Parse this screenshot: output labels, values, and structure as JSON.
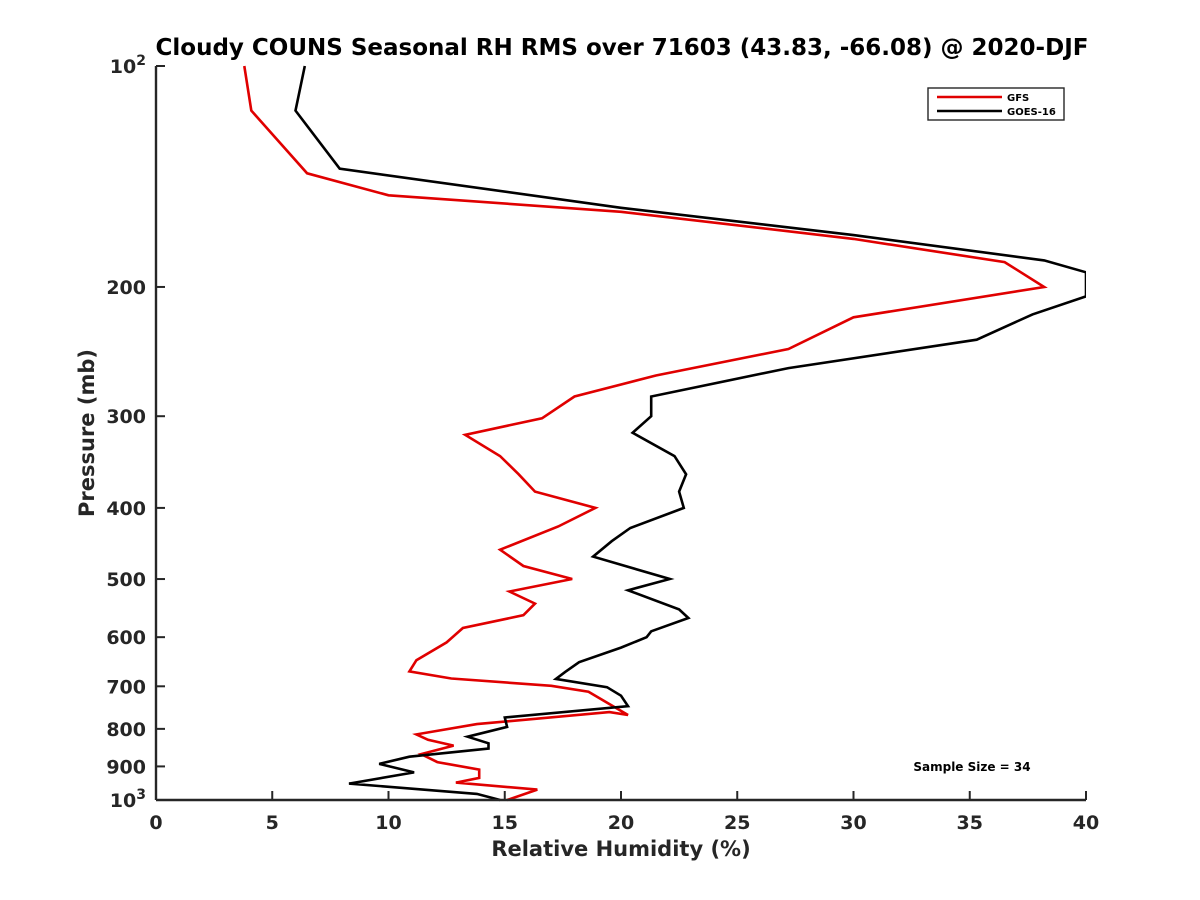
{
  "chart_data": {
    "type": "line",
    "title": "Cloudy COUNS Seasonal RH RMS over 71603 (43.83, -66.08) @ 2020-DJF",
    "xlabel": "Relative Humidity (%)",
    "ylabel": "Pressure (mb)",
    "xlim": [
      0,
      40
    ],
    "ylim": [
      100,
      1000
    ],
    "yscale": "log",
    "ydirection": "reverse",
    "xticks": [
      "0",
      "5",
      "10",
      "15",
      "20",
      "25",
      "30",
      "35",
      "40"
    ],
    "xtick_values": [
      0,
      5,
      10,
      15,
      20,
      25,
      30,
      35,
      40
    ],
    "yticks": [
      {
        "value": 100,
        "base": "10",
        "exp": "2"
      },
      {
        "value": 200,
        "label": "200"
      },
      {
        "value": 300,
        "label": "300"
      },
      {
        "value": 400,
        "label": "400"
      },
      {
        "value": 500,
        "label": "500"
      },
      {
        "value": 600,
        "label": "600"
      },
      {
        "value": 700,
        "label": "700"
      },
      {
        "value": 800,
        "label": "800"
      },
      {
        "value": 900,
        "label": "900"
      },
      {
        "value": 1000,
        "base": "10",
        "exp": "3"
      }
    ],
    "legend_position": "top-right",
    "annotation": "Sample Size = 34",
    "series": [
      {
        "name": "GFS",
        "color": "#e00000",
        "points": [
          [
            3.8,
            100
          ],
          [
            4.1,
            115
          ],
          [
            6.5,
            140
          ],
          [
            10.0,
            150
          ],
          [
            20.0,
            158
          ],
          [
            30.0,
            172
          ],
          [
            36.5,
            185
          ],
          [
            38.2,
            200
          ],
          [
            30.0,
            220
          ],
          [
            27.2,
            243
          ],
          [
            21.5,
            264
          ],
          [
            18.0,
            282
          ],
          [
            16.6,
            302
          ],
          [
            13.3,
            318
          ],
          [
            14.8,
            340
          ],
          [
            15.6,
            360
          ],
          [
            16.3,
            380
          ],
          [
            18.9,
            400
          ],
          [
            17.3,
            424
          ],
          [
            14.8,
            456
          ],
          [
            15.8,
            480
          ],
          [
            17.9,
            500
          ],
          [
            15.2,
            520
          ],
          [
            16.3,
            540
          ],
          [
            15.8,
            560
          ],
          [
            13.2,
            583
          ],
          [
            12.5,
            610
          ],
          [
            11.2,
            645
          ],
          [
            10.9,
            668
          ],
          [
            12.7,
            683
          ],
          [
            17.0,
            699
          ],
          [
            18.6,
            712
          ],
          [
            20.3,
            766
          ],
          [
            19.5,
            759
          ],
          [
            13.8,
            788
          ],
          [
            11.2,
            814
          ],
          [
            11.7,
            828
          ],
          [
            12.8,
            843
          ],
          [
            11.4,
            866
          ],
          [
            12.1,
            888
          ],
          [
            13.9,
            909
          ],
          [
            13.9,
            933
          ],
          [
            12.9,
            947
          ],
          [
            16.4,
            968
          ],
          [
            15.1,
            1000
          ]
        ]
      },
      {
        "name": "GOES-16",
        "color": "#000000",
        "points": [
          [
            6.4,
            100
          ],
          [
            6.0,
            115
          ],
          [
            7.9,
            138
          ],
          [
            20.0,
            156
          ],
          [
            30.0,
            170
          ],
          [
            38.2,
            184
          ],
          [
            40.0,
            191
          ],
          [
            40.0,
            206
          ],
          [
            37.7,
            218
          ],
          [
            35.3,
            236
          ],
          [
            27.2,
            258
          ],
          [
            21.3,
            282
          ],
          [
            21.3,
            300
          ],
          [
            20.5,
            316
          ],
          [
            22.3,
            340
          ],
          [
            22.8,
            360
          ],
          [
            22.5,
            380
          ],
          [
            22.7,
            400
          ],
          [
            20.4,
            426
          ],
          [
            19.6,
            444
          ],
          [
            18.8,
            466
          ],
          [
            22.1,
            500
          ],
          [
            20.3,
            518
          ],
          [
            22.5,
            550
          ],
          [
            22.9,
            565
          ],
          [
            21.3,
            589
          ],
          [
            21.1,
            600
          ],
          [
            20.0,
            620
          ],
          [
            18.2,
            649
          ],
          [
            17.6,
            669
          ],
          [
            17.2,
            684
          ],
          [
            19.4,
            702
          ],
          [
            20.0,
            721
          ],
          [
            20.3,
            745
          ],
          [
            15.0,
            772
          ],
          [
            15.1,
            795
          ],
          [
            13.4,
            820
          ],
          [
            14.3,
            837
          ],
          [
            14.3,
            851
          ],
          [
            10.9,
            873
          ],
          [
            9.6,
            893
          ],
          [
            11.1,
            917
          ],
          [
            8.3,
            950
          ],
          [
            13.8,
            981
          ],
          [
            14.8,
            1000
          ]
        ]
      }
    ]
  }
}
